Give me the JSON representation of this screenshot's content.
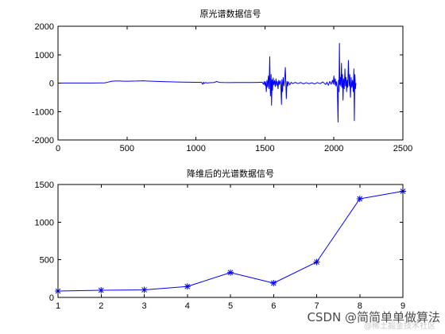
{
  "figure": {
    "background": "#ffffff",
    "axis_color": "#000000"
  },
  "chart_data": [
    {
      "type": "line",
      "title": "原光谱数据信号",
      "xlim": [
        0,
        2500
      ],
      "ylim": [
        -2000,
        2000
      ],
      "xticks": [
        0,
        500,
        1000,
        1500,
        2000,
        2500
      ],
      "yticks": [
        -2000,
        -1000,
        0,
        1000,
        2000
      ],
      "grid": false,
      "series": [
        {
          "color": "#0000ff",
          "x": [
            0,
            50,
            100,
            150,
            200,
            250,
            300,
            340,
            360,
            380,
            400,
            420,
            450,
            480,
            510,
            540,
            570,
            600,
            620,
            640,
            660,
            700,
            740,
            780,
            820,
            860,
            900,
            950,
            1000,
            1040,
            1050,
            1055,
            1060,
            1070,
            1080,
            1100,
            1130,
            1150,
            1160,
            1170,
            1200,
            1250,
            1300,
            1350,
            1400,
            1450,
            1480,
            1490,
            1495,
            1500,
            1505,
            1510,
            1515,
            1520,
            1525,
            1530,
            1535,
            1538,
            1540,
            1545,
            1548,
            1552,
            1555,
            1560,
            1565,
            1570,
            1575,
            1580,
            1585,
            1590,
            1595,
            1600,
            1605,
            1610,
            1615,
            1620,
            1623,
            1628,
            1632,
            1638,
            1642,
            1648,
            1652,
            1655,
            1660,
            1665,
            1670,
            1680,
            1690,
            1700,
            1720,
            1740,
            1760,
            1780,
            1800,
            1820,
            1840,
            1860,
            1880,
            1900,
            1920,
            1940,
            1950,
            1960,
            1970,
            1980,
            1990,
            1995,
            2000,
            2005,
            2010,
            2015,
            2020,
            2025,
            2030,
            2033,
            2037,
            2040,
            2043,
            2046,
            2050,
            2055,
            2058,
            2062,
            2066,
            2070,
            2075,
            2080,
            2084,
            2088,
            2092,
            2096,
            2100,
            2105,
            2110,
            2115,
            2120,
            2125,
            2130,
            2135,
            2140,
            2145,
            2148,
            2152,
            2156,
            2160
          ],
          "y": [
            0,
            2,
            3,
            2,
            4,
            5,
            6,
            10,
            30,
            55,
            70,
            75,
            72,
            68,
            65,
            70,
            72,
            78,
            82,
            75,
            70,
            62,
            55,
            50,
            45,
            40,
            35,
            30,
            28,
            25,
            -40,
            30,
            -10,
            20,
            5,
            15,
            20,
            55,
            40,
            25,
            20,
            18,
            20,
            22,
            20,
            25,
            30,
            -40,
            60,
            -80,
            50,
            -300,
            100,
            -150,
            250,
            -200,
            930,
            -100,
            -450,
            300,
            -780,
            120,
            -250,
            180,
            -60,
            90,
            -120,
            150,
            -80,
            60,
            -200,
            100,
            -50,
            80,
            -40,
            -750,
            120,
            -300,
            200,
            -100,
            80,
            550,
            -80,
            -550,
            60,
            -100,
            50,
            -60,
            30,
            -20,
            25,
            -15,
            20,
            -25,
            15,
            -20,
            10,
            -30,
            20,
            -20,
            40,
            -50,
            30,
            -80,
            60,
            -40,
            100,
            -30,
            250,
            -60,
            150,
            -100,
            50,
            -200,
            -1370,
            100,
            -300,
            1400,
            -50,
            200,
            -100,
            700,
            -150,
            300,
            -600,
            150,
            -200,
            500,
            -100,
            200,
            -300,
            100,
            -150,
            800,
            -100,
            300,
            -500,
            200,
            -150,
            100,
            -300,
            500,
            -1320,
            300,
            -200,
            0
          ]
        }
      ]
    },
    {
      "type": "line",
      "title": "降维后的光谱数据信号",
      "xlim": [
        1,
        9
      ],
      "ylim": [
        0,
        1500
      ],
      "xticks": [
        1,
        2,
        3,
        4,
        5,
        6,
        7,
        8,
        9
      ],
      "yticks": [
        0,
        500,
        1000,
        1500
      ],
      "grid": false,
      "series": [
        {
          "color": "#0000ff",
          "marker": "*",
          "x": [
            1,
            2,
            3,
            4,
            5,
            6,
            7,
            8,
            9
          ],
          "y": [
            85,
            95,
            100,
            145,
            330,
            190,
            470,
            1310,
            1410
          ]
        }
      ]
    }
  ],
  "watermark": {
    "main": "CSDN @简简单单做算法",
    "secondary": "@稀土掘金技术社区"
  }
}
